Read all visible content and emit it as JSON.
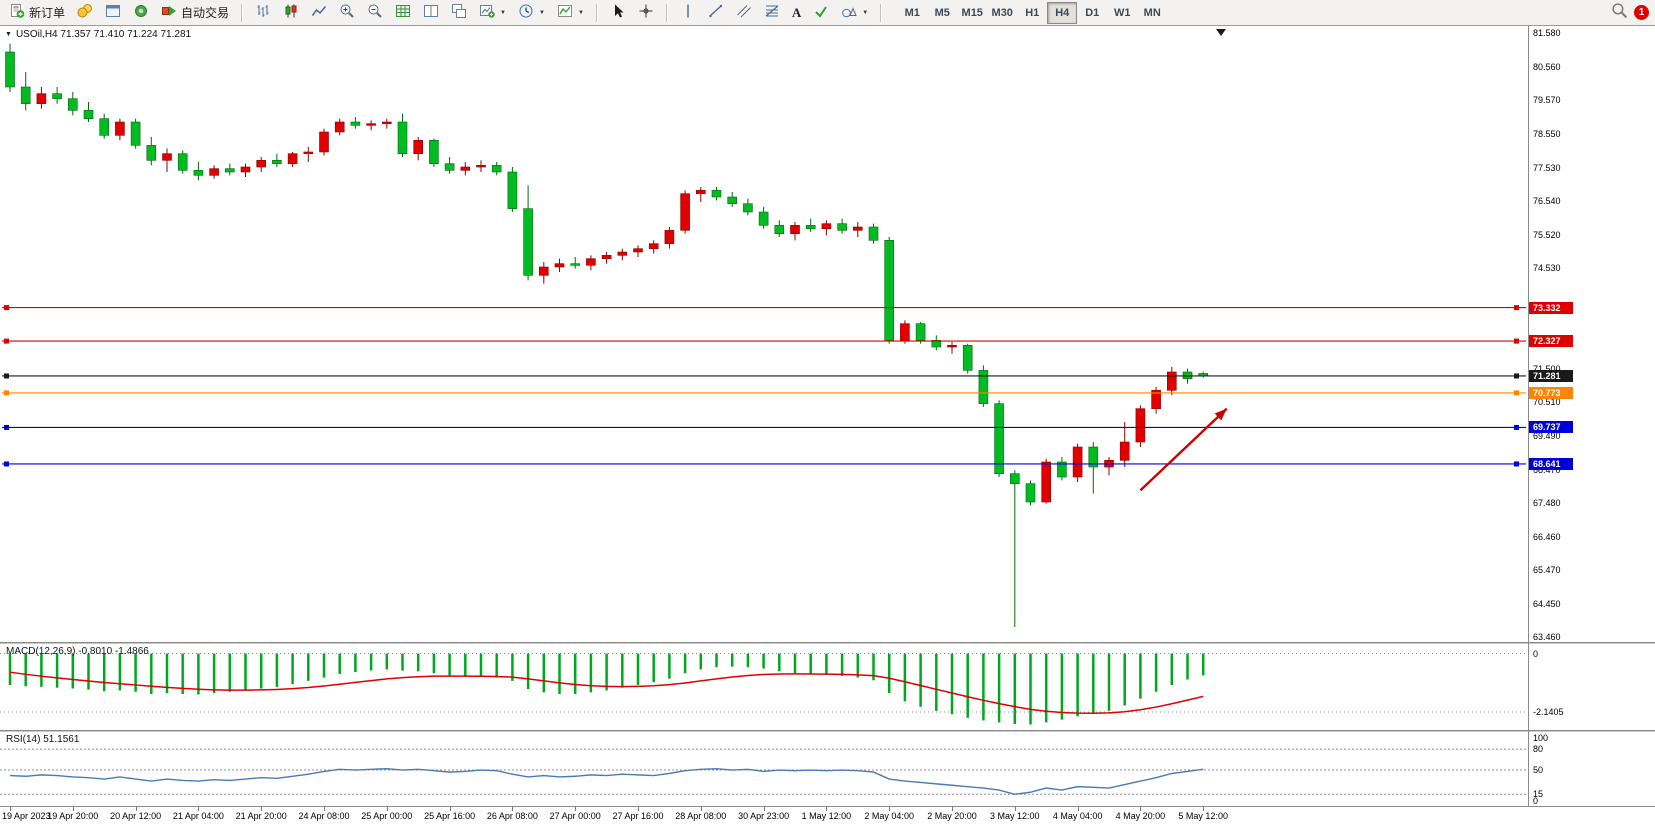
{
  "toolbar": {
    "new_order_label": "新订单",
    "auto_trading_label": "自动交易",
    "timeframes": [
      "M1",
      "M5",
      "M15",
      "M30",
      "H1",
      "H4",
      "D1",
      "W1",
      "MN"
    ],
    "active_timeframe": "H4",
    "notification_count": "1"
  },
  "chart": {
    "symbol_label": "USOil,H4 71.357 71.410 71.224 71.281",
    "y_ticks": [
      "81.580",
      "80.560",
      "79.570",
      "78.550",
      "77.530",
      "76.540",
      "75.520",
      "74.530",
      "71.500",
      "70.510",
      "69.490",
      "68.470",
      "67.480",
      "66.460",
      "65.470",
      "64.450",
      "63.460"
    ],
    "price_lines": [
      {
        "value": 73.332,
        "label": "73.332",
        "color": "#e00000"
      },
      {
        "value": 72.327,
        "label": "72.327",
        "color": "#e00000"
      },
      {
        "value": 71.281,
        "label": "71.281",
        "color": "#1a1a1a"
      },
      {
        "value": 70.773,
        "label": "70.773",
        "color": "#ff8400"
      },
      {
        "value": 69.737,
        "label": "69.737",
        "color": "#0000d8"
      },
      {
        "value": 68.641,
        "label": "68.641",
        "color": "#0000d8"
      }
    ],
    "x_ticks": [
      "19 Apr 2023",
      "19 Apr 20:00",
      "20 Apr 12:00",
      "21 Apr 04:00",
      "21 Apr 20:00",
      "24 Apr 08:00",
      "25 Apr 00:00",
      "25 Apr 16:00",
      "26 Apr 08:00",
      "27 Apr 00:00",
      "27 Apr 16:00",
      "28 Apr 08:00",
      "30 Apr 23:00",
      "1 May 12:00",
      "2 May 04:00",
      "2 May 20:00",
      "3 May 12:00",
      "4 May 04:00",
      "4 May 20:00",
      "5 May 12:00"
    ]
  },
  "macd": {
    "label": "MACD(12,26,9) -0.8010 -1.4866",
    "ticks": [
      "0",
      "-2.1405"
    ],
    "histogram_color": "#00a81e",
    "signal_color": "#e00000"
  },
  "rsi": {
    "label": "RSI(14) 51.1561",
    "ticks": [
      "100",
      "80",
      "50",
      "15",
      "0"
    ],
    "levels": [
      80,
      50,
      15
    ],
    "line_color": "#4a7ab5"
  },
  "chart_data": {
    "type": "candlestick",
    "symbol": "USOil",
    "timeframe": "H4",
    "bull_color": "#e00000",
    "bear_color": "#00bb22",
    "bull_wick": "#8f0000",
    "bear_wick": "#006a10",
    "ohlc": [
      [
        81.0,
        81.25,
        79.8,
        79.95
      ],
      [
        79.95,
        80.4,
        79.25,
        79.45
      ],
      [
        79.45,
        79.95,
        79.3,
        79.75
      ],
      [
        79.75,
        79.95,
        79.45,
        79.6
      ],
      [
        79.6,
        79.8,
        79.1,
        79.25
      ],
      [
        79.25,
        79.5,
        78.9,
        79.0
      ],
      [
        79.0,
        79.15,
        78.4,
        78.5
      ],
      [
        78.5,
        79.0,
        78.35,
        78.9
      ],
      [
        78.9,
        79.0,
        78.1,
        78.2
      ],
      [
        78.2,
        78.45,
        77.6,
        77.75
      ],
      [
        77.75,
        78.1,
        77.4,
        77.95
      ],
      [
        77.95,
        78.05,
        77.35,
        77.45
      ],
      [
        77.45,
        77.7,
        77.15,
        77.3
      ],
      [
        77.3,
        77.6,
        77.2,
        77.5
      ],
      [
        77.5,
        77.65,
        77.3,
        77.4
      ],
      [
        77.4,
        77.65,
        77.25,
        77.55
      ],
      [
        77.55,
        77.85,
        77.4,
        77.75
      ],
      [
        77.75,
        77.95,
        77.55,
        77.65
      ],
      [
        77.65,
        78.0,
        77.55,
        77.95
      ],
      [
        77.95,
        78.15,
        77.7,
        78.0
      ],
      [
        78.0,
        78.7,
        77.9,
        78.6
      ],
      [
        78.6,
        79.0,
        78.5,
        78.9
      ],
      [
        78.9,
        79.05,
        78.7,
        78.8
      ],
      [
        78.8,
        78.95,
        78.65,
        78.85
      ],
      [
        78.85,
        79.0,
        78.7,
        78.9
      ],
      [
        78.9,
        79.15,
        77.85,
        77.95
      ],
      [
        77.95,
        78.45,
        77.75,
        78.35
      ],
      [
        78.35,
        78.4,
        77.55,
        77.65
      ],
      [
        77.65,
        77.85,
        77.35,
        77.45
      ],
      [
        77.45,
        77.7,
        77.3,
        77.55
      ],
      [
        77.55,
        77.75,
        77.4,
        77.6
      ],
      [
        77.6,
        77.7,
        77.3,
        77.4
      ],
      [
        77.4,
        77.55,
        76.2,
        76.3
      ],
      [
        76.3,
        77.0,
        74.15,
        74.3
      ],
      [
        74.3,
        74.7,
        74.05,
        74.55
      ],
      [
        74.55,
        74.8,
        74.4,
        74.65
      ],
      [
        74.65,
        74.85,
        74.5,
        74.6
      ],
      [
        74.6,
        74.9,
        74.45,
        74.8
      ],
      [
        74.8,
        75.0,
        74.65,
        74.9
      ],
      [
        74.9,
        75.1,
        74.75,
        75.0
      ],
      [
        75.0,
        75.2,
        74.85,
        75.1
      ],
      [
        75.1,
        75.35,
        74.95,
        75.25
      ],
      [
        75.25,
        75.75,
        75.1,
        75.65
      ],
      [
        75.65,
        76.85,
        75.55,
        76.75
      ],
      [
        76.75,
        76.95,
        76.5,
        76.85
      ],
      [
        76.85,
        76.95,
        76.55,
        76.65
      ],
      [
        76.65,
        76.8,
        76.35,
        76.45
      ],
      [
        76.45,
        76.6,
        76.1,
        76.2
      ],
      [
        76.2,
        76.35,
        75.7,
        75.8
      ],
      [
        75.8,
        75.95,
        75.45,
        75.55
      ],
      [
        75.55,
        75.9,
        75.35,
        75.8
      ],
      [
        75.8,
        76.0,
        75.6,
        75.7
      ],
      [
        75.7,
        75.95,
        75.5,
        75.85
      ],
      [
        75.85,
        76.0,
        75.55,
        75.65
      ],
      [
        75.65,
        75.9,
        75.45,
        75.75
      ],
      [
        75.75,
        75.85,
        75.25,
        75.35
      ],
      [
        75.35,
        75.45,
        72.25,
        72.35
      ],
      [
        72.35,
        72.95,
        72.25,
        72.85
      ],
      [
        72.85,
        72.9,
        72.25,
        72.35
      ],
      [
        72.35,
        72.5,
        72.05,
        72.15
      ],
      [
        72.15,
        72.3,
        71.95,
        72.2
      ],
      [
        72.2,
        72.25,
        71.35,
        71.45
      ],
      [
        71.45,
        71.6,
        70.35,
        70.45
      ],
      [
        70.45,
        70.55,
        68.25,
        68.35
      ],
      [
        68.35,
        68.45,
        63.75,
        68.05
      ],
      [
        68.05,
        68.15,
        67.4,
        67.5
      ],
      [
        67.5,
        68.8,
        67.45,
        68.7
      ],
      [
        68.7,
        68.85,
        68.15,
        68.25
      ],
      [
        68.25,
        69.25,
        68.1,
        69.15
      ],
      [
        69.15,
        69.3,
        67.75,
        68.55
      ],
      [
        68.55,
        68.85,
        68.3,
        68.75
      ],
      [
        68.75,
        69.9,
        68.55,
        69.3
      ],
      [
        69.3,
        70.4,
        69.15,
        70.3
      ],
      [
        70.3,
        70.95,
        70.15,
        70.85
      ],
      [
        70.85,
        71.55,
        70.7,
        71.4
      ],
      [
        71.4,
        71.5,
        71.05,
        71.2
      ],
      [
        71.357,
        71.41,
        71.224,
        71.281
      ]
    ],
    "macd_histogram": [
      -1.15,
      -1.2,
      -1.22,
      -1.25,
      -1.28,
      -1.32,
      -1.38,
      -1.35,
      -1.4,
      -1.48,
      -1.45,
      -1.48,
      -1.5,
      -1.45,
      -1.4,
      -1.35,
      -1.28,
      -1.22,
      -1.12,
      -1.0,
      -0.88,
      -0.75,
      -0.68,
      -0.62,
      -0.58,
      -0.62,
      -0.65,
      -0.72,
      -0.8,
      -0.85,
      -0.85,
      -0.88,
      -1.0,
      -1.3,
      -1.42,
      -1.48,
      -1.48,
      -1.42,
      -1.35,
      -1.25,
      -1.15,
      -1.05,
      -0.92,
      -0.72,
      -0.58,
      -0.5,
      -0.48,
      -0.5,
      -0.55,
      -0.65,
      -0.72,
      -0.76,
      -0.78,
      -0.82,
      -0.88,
      -0.98,
      -1.45,
      -1.75,
      -1.95,
      -2.1,
      -2.22,
      -2.35,
      -2.45,
      -2.52,
      -2.58,
      -2.6,
      -2.52,
      -2.42,
      -2.3,
      -2.2,
      -2.1,
      -1.9,
      -1.65,
      -1.4,
      -1.15,
      -0.95,
      -0.8
    ],
    "rsi_values": [
      42,
      41,
      43,
      42,
      40,
      39,
      37,
      40,
      37,
      34,
      37,
      35,
      34,
      36,
      35,
      37,
      39,
      38,
      41,
      44,
      48,
      51,
      50,
      51,
      52,
      50,
      51,
      49,
      47,
      48,
      50,
      49,
      44,
      40,
      42,
      40,
      41,
      43,
      42,
      44,
      43,
      42,
      45,
      49,
      51,
      52,
      50,
      51,
      48,
      50,
      49,
      50,
      49,
      50,
      49,
      47,
      37,
      34,
      32,
      30,
      28,
      26,
      24,
      21,
      15,
      18,
      24,
      21,
      26,
      25,
      24,
      29,
      34,
      39,
      45,
      48,
      51.2
    ],
    "arrow": {
      "from_index": 72,
      "from_price": 67.85,
      "to_index": 77.5,
      "to_price": 70.3,
      "color": "#cc0000"
    }
  }
}
